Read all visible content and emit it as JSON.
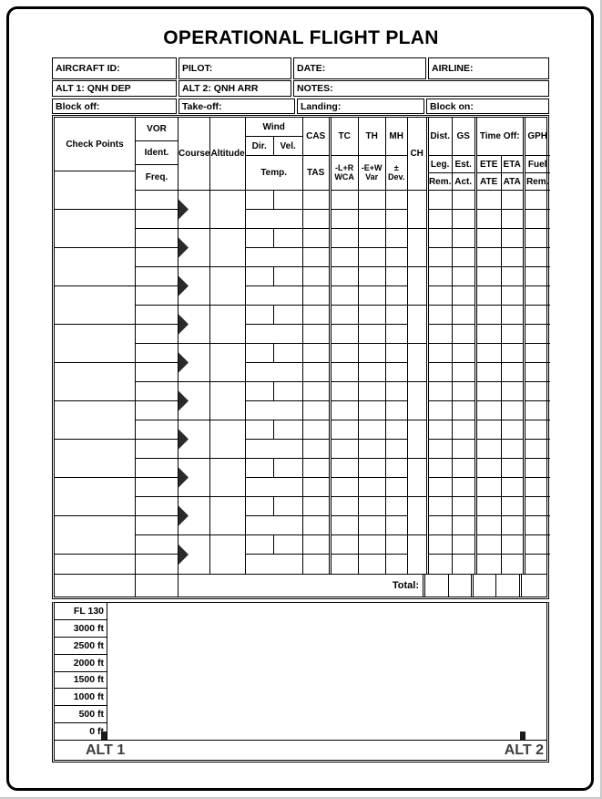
{
  "title": "OPERATIONAL FLIGHT PLAN",
  "info": {
    "aircraft_id": "AIRCRAFT ID:",
    "pilot": "PILOT:",
    "date": "DATE:",
    "airline": "AIRLINE:",
    "alt1_qnh": "ALT 1: QNH DEP",
    "alt2_qnh": "ALT 2: QNH ARR",
    "notes": "NOTES:",
    "block_off": "Block off:",
    "take_off": "Take-off:",
    "landing": "Landing:",
    "block_on": "Block on:"
  },
  "log": {
    "legs": 10,
    "headers": {
      "check_points": "Check Points",
      "vor": "VOR",
      "ident": "Ident.",
      "freq": "Freq.",
      "course": "Course",
      "altitude": "Altitude",
      "wind": "Wind",
      "dir": "Dir.",
      "vel": "Vel.",
      "temp": "Temp.",
      "cas": "CAS",
      "tas": "TAS",
      "tc": "TC",
      "tc_sub1": "-L+R",
      "tc_sub2": "WCA",
      "th": "TH",
      "th_sub1": "-E+W",
      "th_sub2": "Var",
      "mh": "MH",
      "mh_sub": "± Dev.",
      "ch": "CH",
      "dist": "Dist.",
      "leg": "Leg.",
      "dist_rem": "Rem.",
      "gs": "GS",
      "est": "Est.",
      "act": "Act.",
      "time_off": "Time Off:",
      "ete": "ETE",
      "eta": "ETA",
      "ate": "ATE",
      "ata": "ATA",
      "gph": "GPH",
      "fuel": "Fuel",
      "gph_rem": "Rem."
    },
    "total_label": "Total:"
  },
  "profile": {
    "altitude_labels": [
      "FL 130",
      "3000 ft",
      "2500 ft",
      "2000 ft",
      "1500 ft",
      "1000 ft",
      "500 ft",
      "0 ft"
    ],
    "alt1_label": "ALT 1",
    "alt2_label": "ALT 2"
  }
}
